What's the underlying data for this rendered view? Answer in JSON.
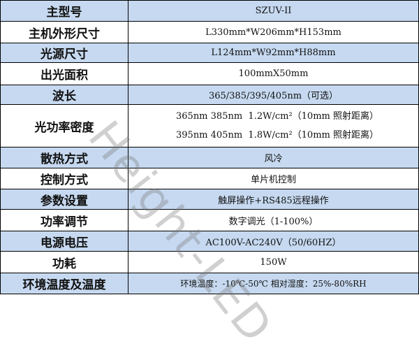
{
  "rows": [
    {
      "label": "主型号",
      "value": "SZUV-II"
    },
    {
      "label": "主机外形尺寸",
      "value": "L330mm*W206mm*H153mm"
    },
    {
      "label": "光源尺寸",
      "value": "L124mm*W92mm*H88mm"
    },
    {
      "label": "出光面积",
      "value": "100mmX50mm"
    },
    {
      "label": "波长",
      "value": "365/385/395/405nm（可选）"
    },
    {
      "label": "光功率密度",
      "lines": [
        "365nm 385nm  1.2W/cm²（10mm 照射距离）",
        "395nm 405nm  1.8W/cm²（10mm 照射距离）"
      ]
    },
    {
      "label": "散热方式",
      "value": "风冷"
    },
    {
      "label": "控制方式",
      "value": "单片机控制"
    },
    {
      "label": "参数设置",
      "value": "触屏操作+RS485远程操作"
    },
    {
      "label": "功率调节",
      "value": "数字调光（1-100%）"
    },
    {
      "label": "电源电压",
      "value": "AC100V-AC240V（50/60HZ）"
    },
    {
      "label": "功耗",
      "value": "150W"
    },
    {
      "label": "环境温度及温度",
      "value": "环境温度：-10℃-50℃ 相对湿度：25%-80%RH"
    }
  ],
  "watermark": "Height-LED",
  "colors": {
    "band": "#c6d9f0",
    "border": "#000000"
  }
}
